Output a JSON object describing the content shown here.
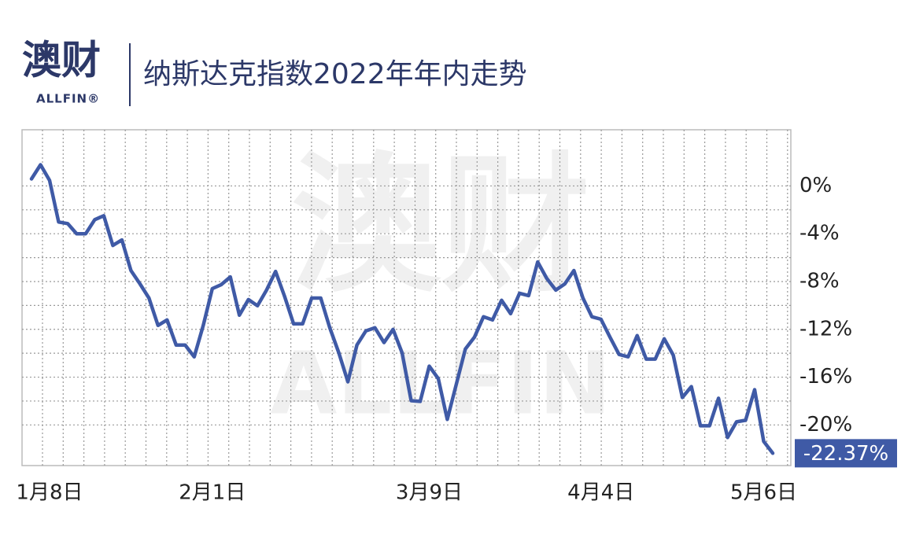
{
  "logo": {
    "text": "澳财",
    "subtext": "ALLFIN®"
  },
  "watermark": {
    "text": "澳财",
    "subtext": "ALLFIN"
  },
  "chart_data": {
    "type": "line",
    "title": "纳斯达克指数2022年年内走势",
    "categories": [
      null,
      null,
      "1月8日",
      null,
      null,
      null,
      null,
      null,
      null,
      null,
      null,
      null,
      null,
      null,
      null,
      null,
      null,
      null,
      null,
      null,
      "2月1日",
      null,
      null,
      null,
      null,
      null,
      null,
      null,
      null,
      null,
      null,
      null,
      null,
      null,
      null,
      null,
      null,
      null,
      null,
      null,
      null,
      null,
      null,
      null,
      "3月9日",
      null,
      null,
      null,
      null,
      null,
      null,
      null,
      null,
      null,
      null,
      null,
      null,
      null,
      null,
      null,
      null,
      null,
      null,
      "4月4日",
      null,
      null,
      null,
      null,
      null,
      null,
      null,
      null,
      null,
      null,
      null,
      null,
      null,
      null,
      null,
      null,
      null,
      "5月6日",
      null
    ],
    "series": [
      {
        "name": "纳斯达克指数",
        "color": "#3f5aa6",
        "values": [
          0.59,
          1.77,
          0.46,
          -3.02,
          -3.15,
          -4.0,
          -4.0,
          -2.82,
          -2.49,
          -4.98,
          -4.52,
          -7.08,
          -8.2,
          -9.38,
          -11.67,
          -11.21,
          -13.31,
          -13.31,
          -14.3,
          -11.67,
          -8.59,
          -8.26,
          -7.61,
          -10.82,
          -9.51,
          -10.03,
          -8.72,
          -7.15,
          -9.25,
          -11.54,
          -11.54,
          -9.38,
          -9.38,
          -11.87,
          -13.97,
          -16.39,
          -13.31,
          -12.13,
          -11.87,
          -13.11,
          -12.0,
          -13.97,
          -17.97,
          -18.03,
          -15.08,
          -16.13,
          -19.54,
          -16.59,
          -13.64,
          -12.66,
          -10.95,
          -11.21,
          -9.57,
          -10.69,
          -8.98,
          -9.18,
          -6.36,
          -7.74,
          -8.72,
          -8.2,
          -7.08,
          -9.38,
          -10.95,
          -11.15,
          -12.66,
          -14.1,
          -14.3,
          -12.52,
          -14.49,
          -14.49,
          -12.79,
          -14.16,
          -17.7,
          -16.79,
          -20.07,
          -20.07,
          -17.77,
          -21.05,
          -19.74,
          -19.61,
          -17.05,
          -21.38,
          -22.37
        ],
        "value_labels": [
          null,
          null,
          null,
          null,
          null,
          null,
          null,
          null,
          null,
          null,
          null,
          null,
          null,
          null,
          null,
          null,
          null,
          null,
          null,
          null,
          null,
          null,
          null,
          null,
          null,
          null,
          null,
          null,
          null,
          null,
          null,
          null,
          null,
          null,
          null,
          null,
          null,
          null,
          null,
          null,
          null,
          null,
          null,
          null,
          null,
          null,
          null,
          null,
          null,
          null,
          null,
          null,
          null,
          null,
          null,
          null,
          null,
          null,
          null,
          null,
          null,
          null,
          null,
          null,
          null,
          null,
          null,
          null,
          null,
          null,
          null,
          null,
          null,
          null,
          null,
          null,
          null,
          null,
          null,
          null,
          null,
          null,
          "-22.37%"
        ]
      }
    ],
    "ylim": [
      -23.4,
      4.7
    ],
    "yticks": [
      {
        "value": 0,
        "label": "0%"
      },
      {
        "value": -4,
        "label": "-4%"
      },
      {
        "value": -8,
        "label": "-8%"
      },
      {
        "value": -12,
        "label": "-12%"
      },
      {
        "value": -16,
        "label": "-16%"
      },
      {
        "value": -20,
        "label": "-20%"
      }
    ],
    "grid": true,
    "label_box_color": "#3f5aa6"
  }
}
